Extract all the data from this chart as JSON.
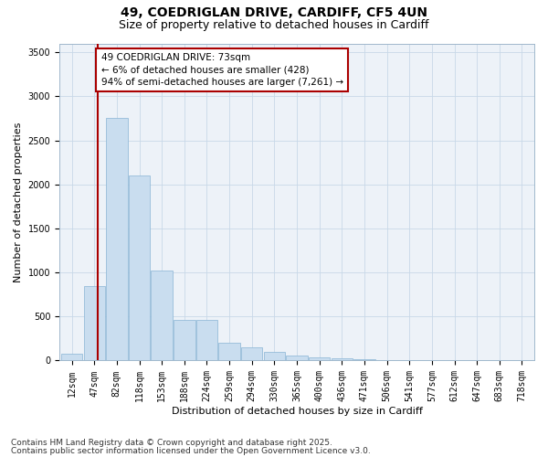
{
  "title_line1": "49, COEDRIGLAN DRIVE, CARDIFF, CF5 4UN",
  "title_line2": "Size of property relative to detached houses in Cardiff",
  "xlabel": "Distribution of detached houses by size in Cardiff",
  "ylabel": "Number of detached properties",
  "bar_color": "#c9ddef",
  "bar_edge_color": "#89b4d4",
  "grid_color": "#c8d8e8",
  "background_color": "#edf2f8",
  "categories": [
    "12sqm",
    "47sqm",
    "82sqm",
    "118sqm",
    "153sqm",
    "188sqm",
    "224sqm",
    "259sqm",
    "294sqm",
    "330sqm",
    "365sqm",
    "400sqm",
    "436sqm",
    "471sqm",
    "506sqm",
    "541sqm",
    "577sqm",
    "612sqm",
    "647sqm",
    "683sqm",
    "718sqm"
  ],
  "values": [
    80,
    850,
    2750,
    2100,
    1020,
    460,
    460,
    200,
    155,
    95,
    60,
    40,
    25,
    15,
    10,
    7,
    5,
    3,
    2,
    1,
    1
  ],
  "ylim": [
    0,
    3600
  ],
  "yticks": [
    0,
    500,
    1000,
    1500,
    2000,
    2500,
    3000,
    3500
  ],
  "vline_x_bar_index": 1,
  "vline_x_offset": 0.15,
  "annotation_text": "49 COEDRIGLAN DRIVE: 73sqm\n← 6% of detached houses are smaller (428)\n94% of semi-detached houses are larger (7,261) →",
  "annotation_box_color": "#ffffff",
  "annotation_box_edge": "#aa0000",
  "vline_color": "#aa0000",
  "footer_line1": "Contains HM Land Registry data © Crown copyright and database right 2025.",
  "footer_line2": "Contains public sector information licensed under the Open Government Licence v3.0.",
  "title_fontsize": 10,
  "subtitle_fontsize": 9,
  "axis_label_fontsize": 8,
  "tick_fontsize": 7,
  "annotation_fontsize": 7.5,
  "footer_fontsize": 6.5
}
